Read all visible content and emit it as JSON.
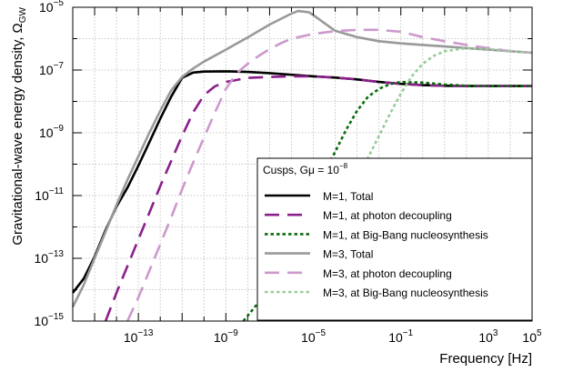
{
  "chart_data": {
    "type": "line",
    "xscale": "log",
    "yscale": "log",
    "xlim": [
      1e-16,
      100000.0
    ],
    "ylim": [
      1e-15,
      1e-05
    ],
    "xlabel": "Frequency [Hz]",
    "ylabel_main": "Gravitational-wave energy density, ",
    "ylabel_symbol": "Ω",
    "ylabel_sub": "GW",
    "grid": true,
    "x_major_ticks": [
      {
        "exp": -13,
        "base": "10",
        "sup": "−13"
      },
      {
        "exp": -9,
        "base": "10",
        "sup": "−9"
      },
      {
        "exp": -5,
        "base": "10",
        "sup": "−5"
      },
      {
        "exp": -1,
        "base": "10",
        "sup": "−1"
      },
      {
        "exp": 3,
        "base": "10",
        "sup": "3"
      },
      {
        "exp": 5,
        "base": "10",
        "sup": "5"
      }
    ],
    "y_major_ticks": [
      {
        "exp": -15,
        "base": "10",
        "sup": "−15"
      },
      {
        "exp": -13,
        "base": "10",
        "sup": "−13"
      },
      {
        "exp": -11,
        "base": "10",
        "sup": "−11"
      },
      {
        "exp": -9,
        "base": "10",
        "sup": "−9"
      },
      {
        "exp": -7,
        "base": "10",
        "sup": "−7"
      },
      {
        "exp": -5,
        "base": "10",
        "sup": "−5"
      }
    ],
    "legend": {
      "placement": "lower-right",
      "title_pre": "Cusps, G",
      "title_mu": "μ",
      "title_mid": " = 10",
      "title_sup": "−8"
    },
    "series": [
      {
        "name": "M=1, Total",
        "color": "#000000",
        "dash": "solid",
        "points": [
          [
            -16,
            -14.1
          ],
          [
            -15.5,
            -13.65
          ],
          [
            -15,
            -12.95
          ],
          [
            -14.5,
            -12.1
          ],
          [
            -14,
            -11.35
          ],
          [
            -13.5,
            -10.75
          ],
          [
            -13,
            -10.05
          ],
          [
            -12.5,
            -9.3
          ],
          [
            -12,
            -8.55
          ],
          [
            -11.5,
            -7.85
          ],
          [
            -11,
            -7.25
          ],
          [
            -10.5,
            -7.08
          ],
          [
            -10,
            -7.05
          ],
          [
            -9,
            -7.04
          ],
          [
            -8,
            -7.06
          ],
          [
            -7,
            -7.1
          ],
          [
            -6,
            -7.15
          ],
          [
            -5,
            -7.2
          ],
          [
            -4,
            -7.24
          ],
          [
            -3,
            -7.3
          ],
          [
            -2,
            -7.38
          ],
          [
            -1,
            -7.44
          ],
          [
            0,
            -7.48
          ],
          [
            1,
            -7.5
          ],
          [
            2,
            -7.51
          ],
          [
            3,
            -7.51
          ],
          [
            4,
            -7.51
          ],
          [
            5,
            -7.51
          ]
        ]
      },
      {
        "name": "M=1, at photon decoupling",
        "color": "#8b1f8b",
        "dash": "long",
        "points": [
          [
            -14.5,
            -15
          ],
          [
            -14,
            -14.1
          ],
          [
            -13.5,
            -13.25
          ],
          [
            -13,
            -12.4
          ],
          [
            -12.5,
            -11.55
          ],
          [
            -12,
            -10.7
          ],
          [
            -11.5,
            -9.9
          ],
          [
            -11,
            -9.1
          ],
          [
            -10.5,
            -8.35
          ],
          [
            -10,
            -7.8
          ],
          [
            -9.5,
            -7.52
          ],
          [
            -9,
            -7.38
          ],
          [
            -8,
            -7.25
          ],
          [
            -7,
            -7.22
          ],
          [
            -6,
            -7.2
          ],
          [
            -5,
            -7.2
          ],
          [
            -4,
            -7.24
          ],
          [
            -3,
            -7.3
          ],
          [
            -2,
            -7.38
          ],
          [
            -1,
            -7.44
          ],
          [
            0,
            -7.48
          ],
          [
            1,
            -7.5
          ],
          [
            2,
            -7.51
          ],
          [
            3,
            -7.51
          ],
          [
            4,
            -7.51
          ],
          [
            5,
            -7.51
          ]
        ]
      },
      {
        "name": "M=1, at Big-Bang nucleosynthesis",
        "color": "#0b6b0b",
        "dash": "dotted",
        "points": [
          [
            -8.2,
            -15
          ],
          [
            -7.5,
            -14.4
          ],
          [
            -7,
            -13.8
          ],
          [
            -6.5,
            -13.1
          ],
          [
            -6,
            -12.4
          ],
          [
            -5.5,
            -11.7
          ],
          [
            -5,
            -11
          ],
          [
            -4.5,
            -10.3
          ],
          [
            -4,
            -9.6
          ],
          [
            -3.5,
            -8.9
          ],
          [
            -3,
            -8.3
          ],
          [
            -2.5,
            -7.85
          ],
          [
            -2,
            -7.6
          ],
          [
            -1.5,
            -7.45
          ],
          [
            -1,
            -7.38
          ],
          [
            0,
            -7.4
          ],
          [
            1,
            -7.46
          ],
          [
            2,
            -7.5
          ],
          [
            3,
            -7.51
          ],
          [
            4,
            -7.51
          ],
          [
            5,
            -7.51
          ]
        ]
      },
      {
        "name": "M=3, Total",
        "color": "#999999",
        "dash": "solid",
        "points": [
          [
            -16,
            -14.55
          ],
          [
            -15.5,
            -13.85
          ],
          [
            -15,
            -13
          ],
          [
            -14.5,
            -12.15
          ],
          [
            -14,
            -11.3
          ],
          [
            -13.5,
            -10.5
          ],
          [
            -13,
            -9.75
          ],
          [
            -12.5,
            -9.0
          ],
          [
            -12,
            -8.3
          ],
          [
            -11.5,
            -7.65
          ],
          [
            -11,
            -7.22
          ],
          [
            -10.5,
            -6.95
          ],
          [
            -10,
            -6.73
          ],
          [
            -9,
            -6.35
          ],
          [
            -8,
            -5.96
          ],
          [
            -7,
            -5.55
          ],
          [
            -6,
            -5.2
          ],
          [
            -5.7,
            -5.12
          ],
          [
            -5.2,
            -5.16
          ],
          [
            -5,
            -5.25
          ],
          [
            -4.5,
            -5.5
          ],
          [
            -4,
            -5.75
          ],
          [
            -3,
            -5.95
          ],
          [
            -2,
            -6.08
          ],
          [
            -1,
            -6.15
          ],
          [
            0,
            -6.2
          ],
          [
            1,
            -6.25
          ],
          [
            2,
            -6.3
          ],
          [
            3,
            -6.35
          ],
          [
            4,
            -6.4
          ],
          [
            5,
            -6.45
          ]
        ]
      },
      {
        "name": "M=3, at photon decoupling",
        "color": "#cc99cc",
        "dash": "long",
        "points": [
          [
            -13.5,
            -15
          ],
          [
            -13,
            -14.25
          ],
          [
            -12.5,
            -13.4
          ],
          [
            -12,
            -12.55
          ],
          [
            -11.5,
            -11.7
          ],
          [
            -11,
            -10.8
          ],
          [
            -10.5,
            -9.95
          ],
          [
            -10,
            -9.15
          ],
          [
            -9.5,
            -8.35
          ],
          [
            -9,
            -7.6
          ],
          [
            -8.5,
            -7.1
          ],
          [
            -8,
            -6.8
          ],
          [
            -7.5,
            -6.55
          ],
          [
            -7,
            -6.33
          ],
          [
            -6.5,
            -6.15
          ],
          [
            -6,
            -6.0
          ],
          [
            -5,
            -5.85
          ],
          [
            -4,
            -5.76
          ],
          [
            -3,
            -5.72
          ],
          [
            -2,
            -5.72
          ],
          [
            -1,
            -5.78
          ],
          [
            0,
            -5.95
          ],
          [
            1,
            -6.08
          ],
          [
            2,
            -6.2
          ],
          [
            3,
            -6.3
          ],
          [
            4,
            -6.4
          ],
          [
            5,
            -6.45
          ]
        ]
      },
      {
        "name": "M=3, at Big-Bang nucleosynthesis",
        "color": "#99cc99",
        "dash": "dotted",
        "points": [
          [
            -6.5,
            -15
          ],
          [
            -6,
            -14.45
          ],
          [
            -5.5,
            -13.85
          ],
          [
            -5,
            -13.25
          ],
          [
            -4.5,
            -12.6
          ],
          [
            -4,
            -11.9
          ],
          [
            -3.5,
            -11.2
          ],
          [
            -3,
            -10.5
          ],
          [
            -2.5,
            -9.8
          ],
          [
            -2,
            -9.1
          ],
          [
            -1.5,
            -8.4
          ],
          [
            -1,
            -7.75
          ],
          [
            -0.5,
            -7.2
          ],
          [
            0,
            -6.8
          ],
          [
            0.5,
            -6.55
          ],
          [
            1,
            -6.4
          ],
          [
            2,
            -6.3
          ],
          [
            3,
            -6.33
          ],
          [
            4,
            -6.4
          ],
          [
            5,
            -6.45
          ]
        ]
      }
    ]
  }
}
